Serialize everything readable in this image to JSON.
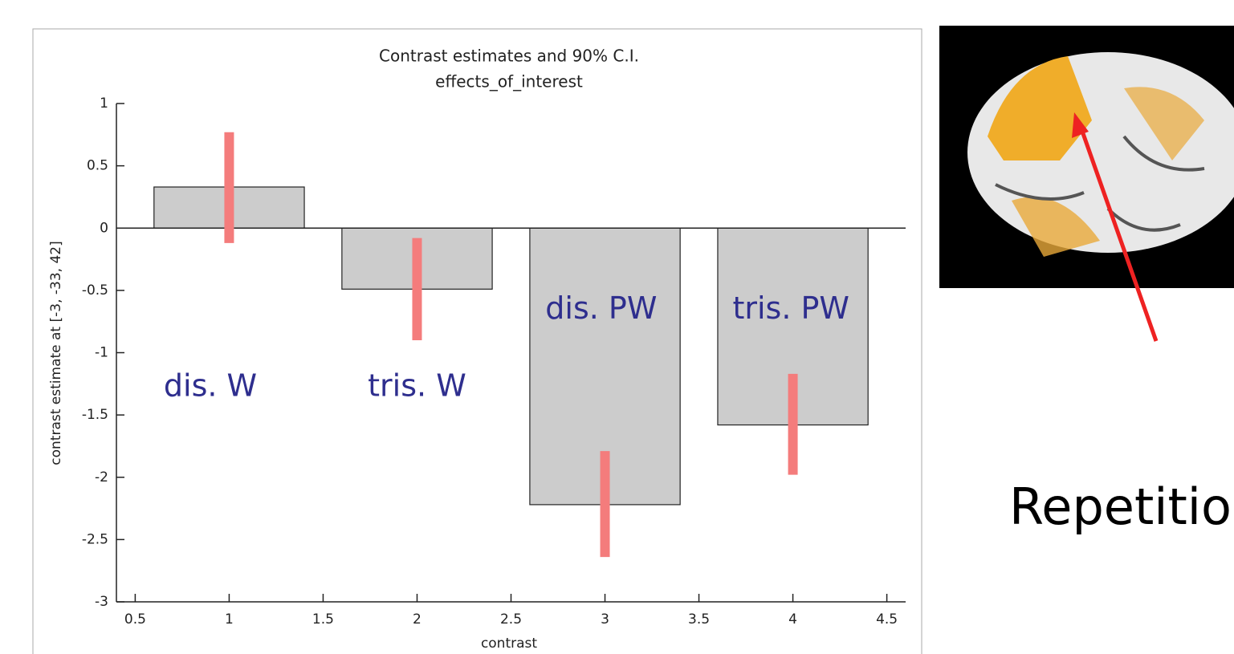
{
  "chart_data": {
    "type": "bar",
    "title": "Contrast estimates and 90% C.I.",
    "subtitle": "effects_of_interest",
    "x_label": "contrast",
    "y_label": "contrast estimate at [-3, -33, 42]",
    "x": [
      1,
      2,
      3,
      4
    ],
    "values": [
      0.33,
      -0.49,
      -2.22,
      -1.58
    ],
    "ci_low": [
      -0.12,
      -0.9,
      -2.64,
      -1.98
    ],
    "ci_high": [
      0.77,
      -0.08,
      -1.79,
      -1.17
    ],
    "annotations": [
      "dis. W",
      "tris. W",
      "dis. PW",
      "tris. PW"
    ],
    "color": "#cccccc",
    "error_color": "#f47c7c",
    "annotation_color": "#2e2e8e",
    "xlim": [
      0.4,
      4.6
    ],
    "ylim": [
      -3,
      1
    ],
    "xticks": [
      0.5,
      1,
      1.5,
      2,
      2.5,
      3,
      3.5,
      4,
      4.5
    ],
    "yticks": [
      -3,
      -2.5,
      -2,
      -1.5,
      -1,
      -0.5,
      0,
      0.5,
      1
    ]
  },
  "side_text": "Repetitio"
}
